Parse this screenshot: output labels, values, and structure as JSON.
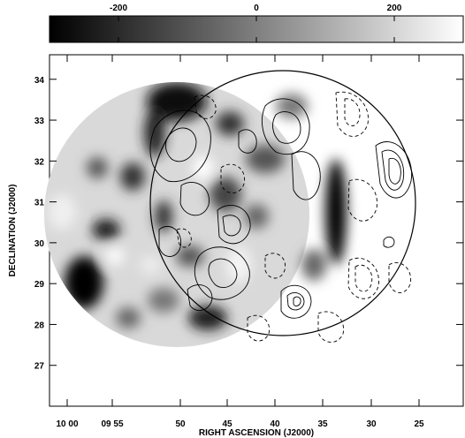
{
  "chart_data": {
    "type": "heatmap",
    "xlabel": "RIGHT ASCENSION (J2000)",
    "ylabel": "DECLINATION (J2000)",
    "x_ticks": [
      "10 00",
      "09 55",
      "50",
      "45",
      "40",
      "35",
      "30",
      "25"
    ],
    "y_ticks": [
      "27",
      "28",
      "29",
      "30",
      "31",
      "32",
      "33",
      "34"
    ],
    "y_range": [
      26.0,
      34.6
    ],
    "colorbar": {
      "ticks": [
        "-200",
        "0",
        "200"
      ],
      "tick_values": [
        -200,
        0,
        200
      ],
      "range": [
        -300,
        300
      ],
      "colormap": "grayscale",
      "low_color": "#000000",
      "high_color": "#ffffff"
    },
    "overlay": {
      "type": "contour",
      "positive_style": "solid",
      "negative_style": "dashed"
    }
  }
}
